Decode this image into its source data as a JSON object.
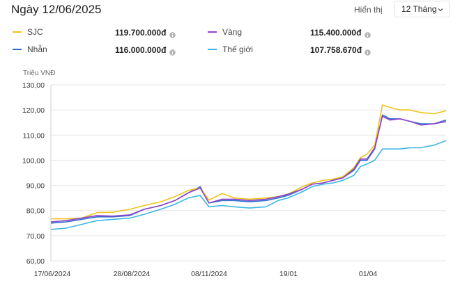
{
  "header": {
    "title": "Ngày 12/06/2025",
    "display_label": "Hiển thị",
    "range_value": "12 Tháng"
  },
  "legend": [
    {
      "name": "SJC",
      "value": "119.700.000đ",
      "color": "#f2c21b"
    },
    {
      "name": "Vàng",
      "value": "115.400.000đ",
      "color": "#8e44c9"
    },
    {
      "name": "Nhẫn",
      "value": "116.000.000đ",
      "color": "#2f6fd1"
    },
    {
      "name": "Thế giới",
      "value": "107.758.670đ",
      "color": "#3cb6e3"
    }
  ],
  "icons": {
    "info": "info-icon",
    "dropdown": "chevron-down-icon"
  },
  "chart_data": {
    "type": "line",
    "ylabel": "Triệu VNĐ",
    "ylim": [
      60,
      130
    ],
    "y_ticks": [
      "130,00",
      "120,00",
      "110,00",
      "100,00",
      "90,00",
      "80,00",
      "70,00",
      "60,00"
    ],
    "x_tick_labels": [
      "17/06/2024",
      "28/08/2024",
      "08/11/2024",
      "19/01",
      "01/04"
    ],
    "grid": true,
    "x": [
      "2024-06-17",
      "2024-07-01",
      "2024-07-15",
      "2024-07-29",
      "2024-08-12",
      "2024-08-28",
      "2024-09-10",
      "2024-09-25",
      "2024-10-08",
      "2024-10-20",
      "2024-10-31",
      "2024-11-08",
      "2024-11-20",
      "2024-12-01",
      "2024-12-15",
      "2024-12-30",
      "2025-01-10",
      "2025-01-19",
      "2025-02-01",
      "2025-02-10",
      "2025-02-20",
      "2025-03-01",
      "2025-03-10",
      "2025-03-20",
      "2025-03-26",
      "2025-04-01",
      "2025-04-08",
      "2025-04-15",
      "2025-04-22",
      "2025-05-01",
      "2025-05-10",
      "2025-05-20",
      "2025-06-01",
      "2025-06-12"
    ],
    "series": [
      {
        "name": "SJC",
        "values": [
          76.7,
          76.7,
          77.0,
          79.2,
          79.3,
          80.5,
          82.0,
          83.5,
          85.5,
          88.0,
          89.0,
          84.2,
          86.8,
          85.0,
          84.5,
          85.0,
          85.5,
          86.5,
          89.5,
          91.0,
          92.0,
          92.5,
          93.5,
          97.0,
          101.0,
          102.5,
          106.0,
          122.0,
          121.0,
          120.0,
          120.0,
          119.0,
          118.5,
          119.7
        ]
      },
      {
        "name": "Vàng",
        "values": [
          75.5,
          76.0,
          77.0,
          78.0,
          77.8,
          78.3,
          80.5,
          82.0,
          84.0,
          87.0,
          89.0,
          83.0,
          84.5,
          84.5,
          84.0,
          84.5,
          85.5,
          86.5,
          88.5,
          90.5,
          91.0,
          92.0,
          93.0,
          96.5,
          100.5,
          100.5,
          105.0,
          117.5,
          116.0,
          116.5,
          115.5,
          114.0,
          114.5,
          115.4
        ]
      },
      {
        "name": "Nhẫn",
        "values": [
          75.0,
          75.5,
          76.5,
          77.5,
          77.5,
          78.0,
          80.5,
          82.0,
          84.0,
          87.0,
          89.5,
          83.0,
          84.0,
          84.0,
          83.5,
          84.0,
          85.0,
          86.0,
          88.5,
          90.5,
          91.0,
          92.0,
          93.0,
          96.0,
          100.0,
          100.0,
          104.5,
          118.0,
          116.5,
          116.5,
          115.5,
          114.5,
          114.5,
          116.0
        ]
      },
      {
        "name": "Thế giới",
        "values": [
          72.5,
          73.0,
          74.5,
          76.0,
          76.5,
          77.0,
          78.5,
          80.5,
          82.5,
          85.0,
          86.0,
          81.5,
          82.0,
          81.5,
          81.0,
          81.5,
          84.0,
          85.0,
          87.5,
          89.5,
          90.5,
          91.0,
          92.0,
          94.0,
          97.5,
          98.5,
          100.0,
          104.5,
          104.5,
          104.5,
          105.0,
          105.0,
          106.0,
          107.8
        ]
      }
    ]
  }
}
